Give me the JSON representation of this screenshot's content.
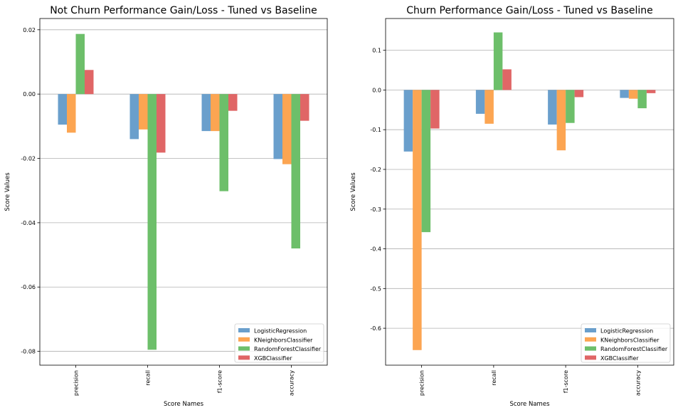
{
  "chart_data": [
    {
      "type": "bar",
      "title": "Not Churn Performance Gain/Loss - Tuned vs Baseline",
      "xlabel": "Score Names",
      "ylabel": "Score Values",
      "categories": [
        "precision",
        "recall",
        "f1-score",
        "accuracy"
      ],
      "series": [
        {
          "name": "LogisticRegression",
          "values": [
            -0.0095,
            -0.014,
            -0.0115,
            -0.0202
          ]
        },
        {
          "name": "KNeighborsClassifier",
          "values": [
            -0.012,
            -0.011,
            -0.0115,
            -0.0218
          ]
        },
        {
          "name": "RandomForestClassifier",
          "values": [
            0.0187,
            -0.0795,
            -0.0302,
            -0.048
          ]
        },
        {
          "name": "XGBClassifier",
          "values": [
            0.0075,
            -0.0182,
            -0.0052,
            -0.0083
          ]
        }
      ],
      "ylim": [
        -0.0843,
        0.0235
      ],
      "yticks": [
        0.02,
        0.0,
        -0.02,
        -0.04,
        -0.06,
        -0.08
      ],
      "yticklabels": [
        "0.02",
        "0.00",
        "-0.02",
        "-0.04",
        "-0.06",
        "-0.08"
      ],
      "grid": "y",
      "legend": "lower-right"
    },
    {
      "type": "bar",
      "title": "Churn Performance Gain/Loss - Tuned vs Baseline",
      "xlabel": "Score Names",
      "ylabel": "Score Values",
      "categories": [
        "precision",
        "recall",
        "f1-score",
        "accuracy"
      ],
      "series": [
        {
          "name": "LogisticRegression",
          "values": [
            -0.155,
            -0.06,
            -0.087,
            -0.02
          ]
        },
        {
          "name": "KNeighborsClassifier",
          "values": [
            -0.655,
            -0.085,
            -0.152,
            -0.022
          ]
        },
        {
          "name": "RandomForestClassifier",
          "values": [
            -0.358,
            0.145,
            -0.083,
            -0.046
          ]
        },
        {
          "name": "XGBClassifier",
          "values": [
            -0.097,
            0.052,
            -0.018,
            -0.008
          ]
        }
      ],
      "ylim": [
        -0.693,
        0.18
      ],
      "yticks": [
        0.1,
        0.0,
        -0.1,
        -0.2,
        -0.3,
        -0.4,
        -0.5,
        -0.6
      ],
      "yticklabels": [
        "0.1",
        "0.0",
        "-0.1",
        "-0.2",
        "-0.3",
        "-0.4",
        "-0.5",
        "-0.6"
      ],
      "grid": "y",
      "legend": "lower-right"
    }
  ],
  "colors": [
    "#6a9fcc",
    "#fca552",
    "#6dbf6a",
    "#e06666"
  ]
}
